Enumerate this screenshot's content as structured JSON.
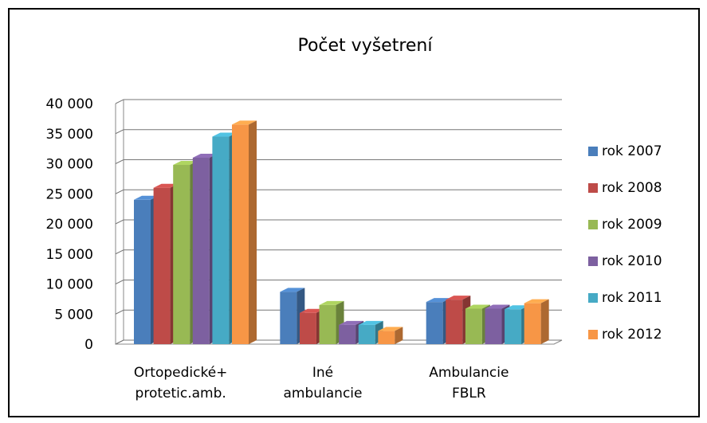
{
  "chart_data": {
    "type": "bar3d",
    "title": "Počet vyšetrení",
    "categories": [
      "Ortopedické+ protetic.amb.",
      "Iné ambulancie",
      "Ambulancie FBLR"
    ],
    "series": [
      {
        "name": "rok 2007",
        "color": "#4a7ebb",
        "values": [
          24000,
          8700,
          7000
        ]
      },
      {
        "name": "rok 2008",
        "color": "#be4b48",
        "values": [
          26000,
          5200,
          7400
        ]
      },
      {
        "name": "rok 2009",
        "color": "#98b954",
        "values": [
          29800,
          6500,
          5900
        ]
      },
      {
        "name": "rok 2010",
        "color": "#7d60a0",
        "values": [
          31000,
          3200,
          5900
        ]
      },
      {
        "name": "rok 2011",
        "color": "#46aac5",
        "values": [
          34500,
          3200,
          5800
        ]
      },
      {
        "name": "rok 2012",
        "color": "#f79646",
        "values": [
          36500,
          2200,
          6800
        ]
      }
    ],
    "ylim": [
      0,
      40000
    ],
    "yticks": [
      0,
      {
        "value": 5000,
        "label": "5 000"
      },
      {
        "value": 10000,
        "label": "10 000"
      },
      {
        "value": 15000,
        "label": "15 000"
      },
      {
        "value": 20000,
        "label": "20 000"
      },
      {
        "value": 25000,
        "label": "25 000"
      },
      {
        "value": 30000,
        "label": "30 000"
      },
      {
        "value": 35000,
        "label": "35 000"
      },
      {
        "value": 40000,
        "label": "40 000"
      }
    ],
    "grid": true,
    "legend": "right"
  }
}
